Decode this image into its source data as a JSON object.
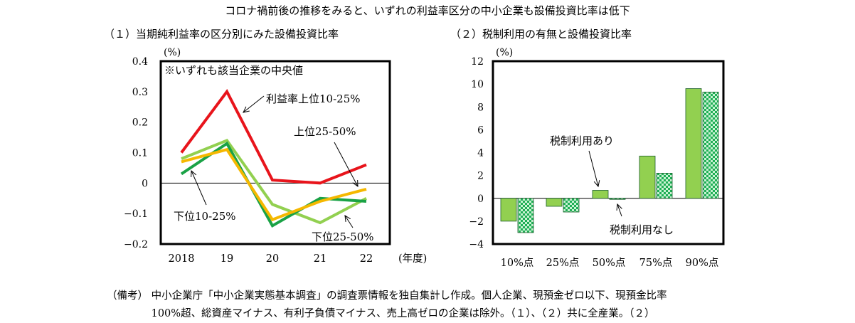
{
  "page": {
    "title": "コロナ禍前後の推移をみると、いずれの利益率区分の中小企業も設備投資比率は低下",
    "notes": [
      "（備考） 中小企業庁「中小企業実態基本調査」の調査票情報を独自集計し作成。個人企業、現預金ゼロ以下、現預金比率",
      "　　　　 100%超、総資産マイナス、有利子負債マイナス、売上高ゼロの企業は除外。（１）、（２）共に全産業。（２）"
    ]
  },
  "chart_data": [
    {
      "type": "line",
      "title": "（１）当期純利益率の区分別にみた設備投資比率",
      "ylabel": "(%)",
      "xlabel": "(年度)",
      "annotation": "※いずれも該当企業の中央値",
      "categories": [
        "2018",
        "19",
        "20",
        "21",
        "22"
      ],
      "ylim": [
        -0.2,
        0.4
      ],
      "yticks": [
        "0.4",
        "0.3",
        "0.2",
        "0.1",
        "0",
        "−0.1",
        "−0.2"
      ],
      "grid": false,
      "series": [
        {
          "name": "利益率上位10-25%",
          "color": "#e8141b",
          "values": [
            0.1,
            0.3,
            0.01,
            0.0,
            0.06
          ]
        },
        {
          "name": "上位25-50%",
          "color": "#f5b800",
          "values": [
            0.07,
            0.11,
            -0.12,
            -0.06,
            -0.02
          ]
        },
        {
          "name": "下位10-25%",
          "color": "#1aa246",
          "values": [
            0.03,
            0.13,
            -0.14,
            -0.05,
            -0.06
          ]
        },
        {
          "name": "下位25-50%",
          "color": "#92d050",
          "values": [
            0.08,
            0.14,
            -0.07,
            -0.13,
            -0.05
          ]
        }
      ]
    },
    {
      "type": "bar",
      "title": "（２）税制利用の有無と設備投資比率",
      "ylabel": "(%)",
      "categories": [
        "10%点",
        "25%点",
        "50%点",
        "75%点",
        "90%点"
      ],
      "ylim": [
        -4,
        12
      ],
      "yticks": [
        "12",
        "10",
        "8",
        "6",
        "4",
        "2",
        "0",
        "−2",
        "−4"
      ],
      "grid": false,
      "series": [
        {
          "name": "税制利用あり",
          "color": "#92d050",
          "values": [
            -2.0,
            -0.7,
            0.7,
            3.7,
            9.6
          ]
        },
        {
          "name": "税制利用なし",
          "color": "#2cc06a",
          "values": [
            -3.0,
            -1.2,
            -0.05,
            2.2,
            9.3
          ]
        }
      ]
    }
  ]
}
